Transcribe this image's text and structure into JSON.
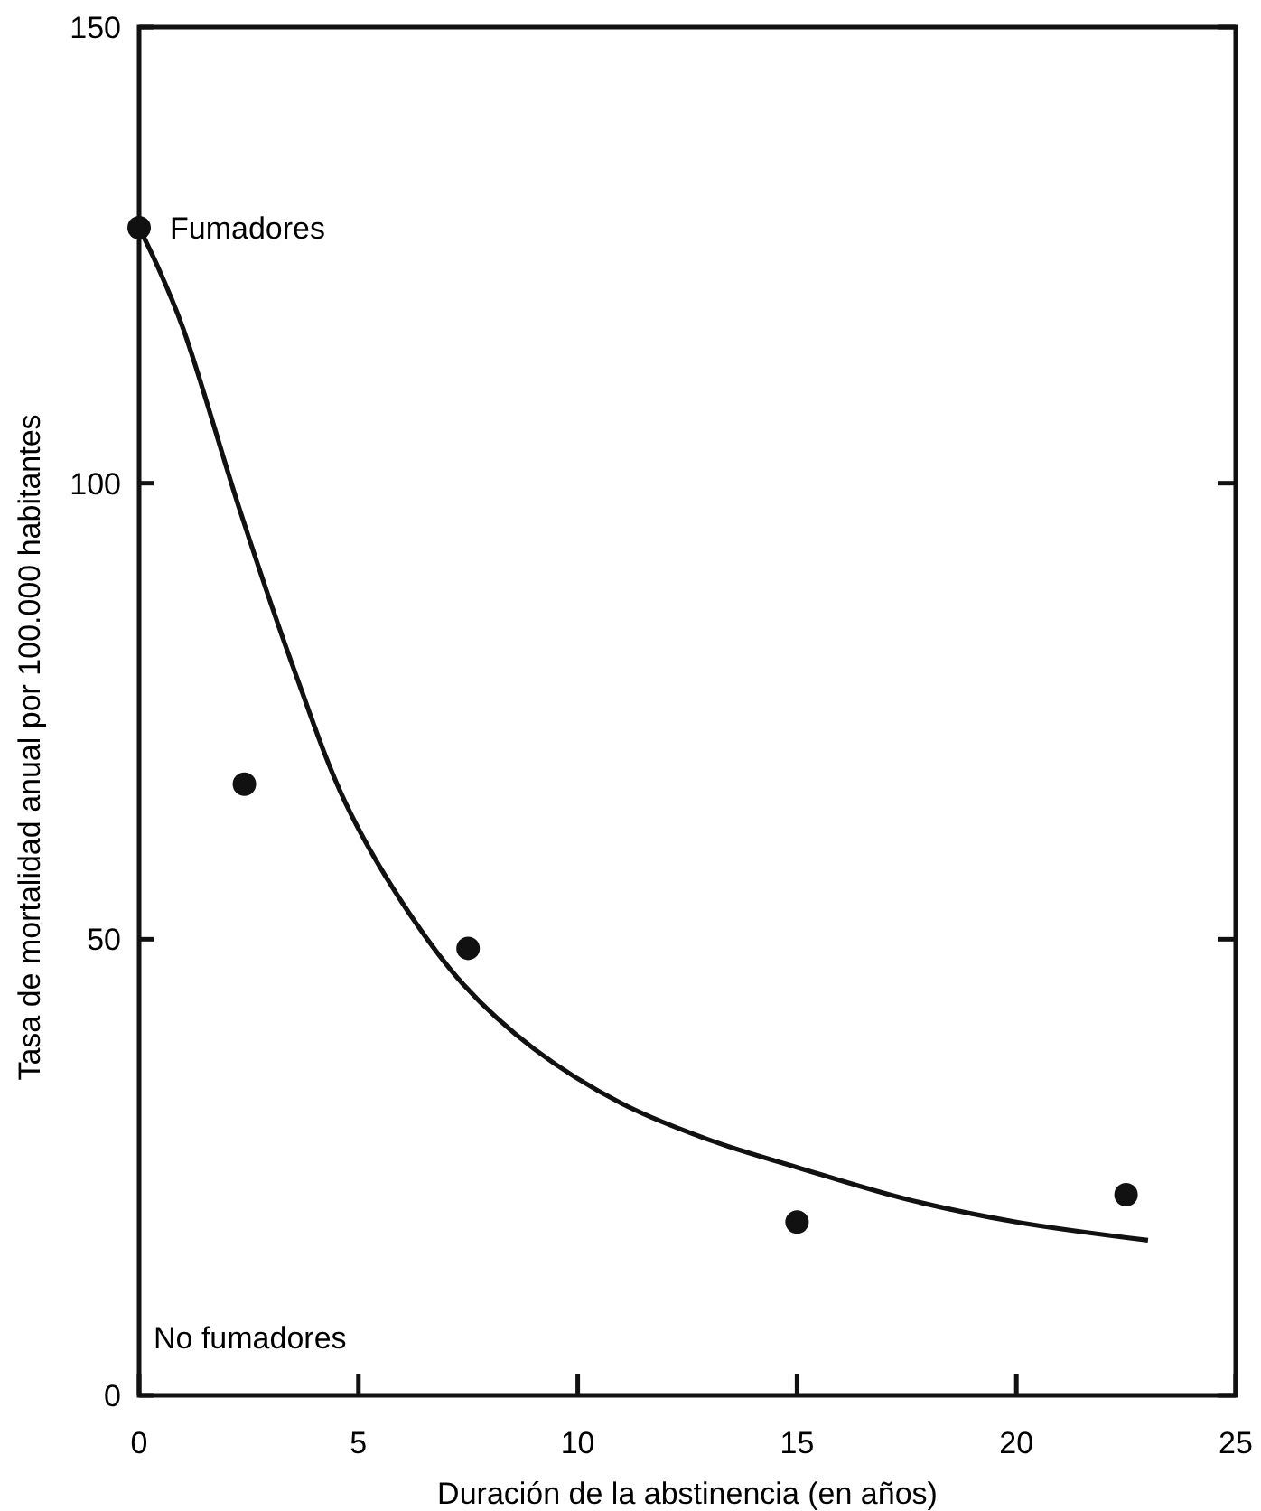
{
  "chart_data": {
    "type": "scatter",
    "xlabel": "Duración de la abstinencia (en años)",
    "ylabel": "Tasa de mortalidad anual por 100.000 habitantes",
    "xlim": [
      0,
      25
    ],
    "xticks": [
      0,
      5,
      10,
      15,
      20,
      25
    ],
    "ylim": [
      0,
      150
    ],
    "yticks": [
      0,
      50,
      100,
      150
    ],
    "grid": false,
    "annotations": [
      {
        "text": "Fumadores",
        "x": 0,
        "y": 128
      },
      "No fumadores"
    ],
    "series": [
      {
        "marker": "circle",
        "color": "#111111",
        "x": [
          0,
          2.4,
          7.5,
          15,
          22.5
        ],
        "values": [
          128,
          67,
          49,
          19,
          22
        ]
      },
      {
        "type": "line",
        "line_style": "solid",
        "color": "#111111",
        "x": [
          0,
          0.4,
          1,
          2.3,
          3.5,
          4.7,
          6,
          7.4,
          9,
          11,
          13,
          15,
          17.5,
          20,
          23
        ],
        "values": [
          128,
          124,
          117,
          97,
          80,
          65,
          54,
          45,
          38,
          32,
          28,
          25,
          21.5,
          19,
          17
        ]
      }
    ]
  }
}
